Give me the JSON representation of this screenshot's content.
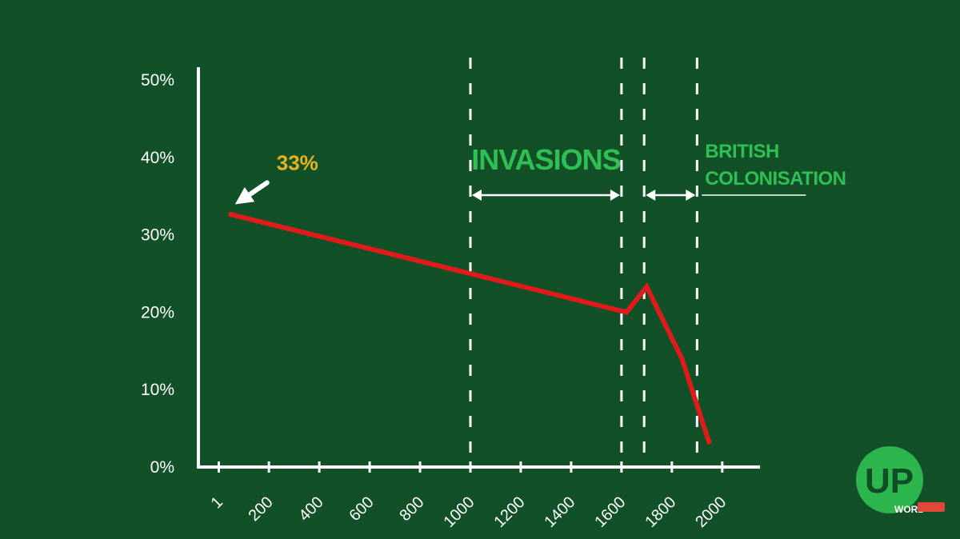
{
  "chart_data": {
    "type": "line",
    "title": "",
    "xlabel": "",
    "ylabel": "",
    "y_ticks": [
      "0%",
      "10%",
      "20%",
      "30%",
      "40%",
      "50%"
    ],
    "y_tick_values": [
      0,
      10,
      20,
      30,
      40,
      50
    ],
    "ylim": [
      0,
      50
    ],
    "x_ticks": [
      "1",
      "200",
      "400",
      "600",
      "800",
      "1000",
      "1200",
      "1400",
      "1600",
      "1800",
      "2000"
    ],
    "x_tick_values": [
      1,
      200,
      400,
      600,
      800,
      1000,
      1200,
      1400,
      1600,
      1800,
      2000
    ],
    "xlim": [
      -80,
      2150
    ],
    "grid": false,
    "series": [
      {
        "color": "#e01b1b",
        "points": [
          {
            "x": 40,
            "y": 32.7
          },
          {
            "x": 1620,
            "y": 20.0
          },
          {
            "x": 1700,
            "y": 23.3
          },
          {
            "x": 1840,
            "y": 14.0
          },
          {
            "x": 1950,
            "y": 3.0
          }
        ]
      }
    ],
    "annotations": [
      {
        "text": "33%",
        "color": "#e5b321",
        "arrow": "white",
        "points_to_x": 40,
        "points_to_y": 32.7
      }
    ],
    "regions": [
      {
        "label": "INVASIONS",
        "x_start": 1000,
        "x_end": 1600
      },
      {
        "label_lines": [
          "BRITISH",
          "COLONISATION"
        ],
        "x_start": 1690,
        "x_end": 1900
      }
    ]
  },
  "logo": {
    "text": "UP",
    "subtext": "WORD",
    "color": "#2db54e"
  }
}
